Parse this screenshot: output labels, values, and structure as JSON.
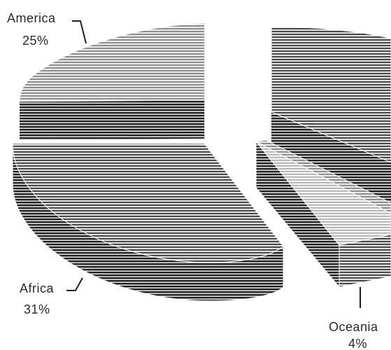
{
  "chart_data": {
    "type": "pie",
    "style": "3d-exploded",
    "slices": [
      {
        "label": "America",
        "value": 25,
        "value_label": "25%",
        "shade": "#9a9a9a"
      },
      {
        "label": "Africa",
        "value": 31,
        "value_label": "31%",
        "shade": "#5e5e5e"
      },
      {
        "label": "Oceania",
        "value": 4,
        "value_label": "4%",
        "shade": "#cfcfcf"
      },
      {
        "label": "",
        "value": 40,
        "value_label": "",
        "shade": "#828282"
      }
    ],
    "colors": {
      "stripe_dark": "#1c1c1c",
      "stripe_light": "#f2f2f2",
      "background": "#ffffff"
    }
  }
}
